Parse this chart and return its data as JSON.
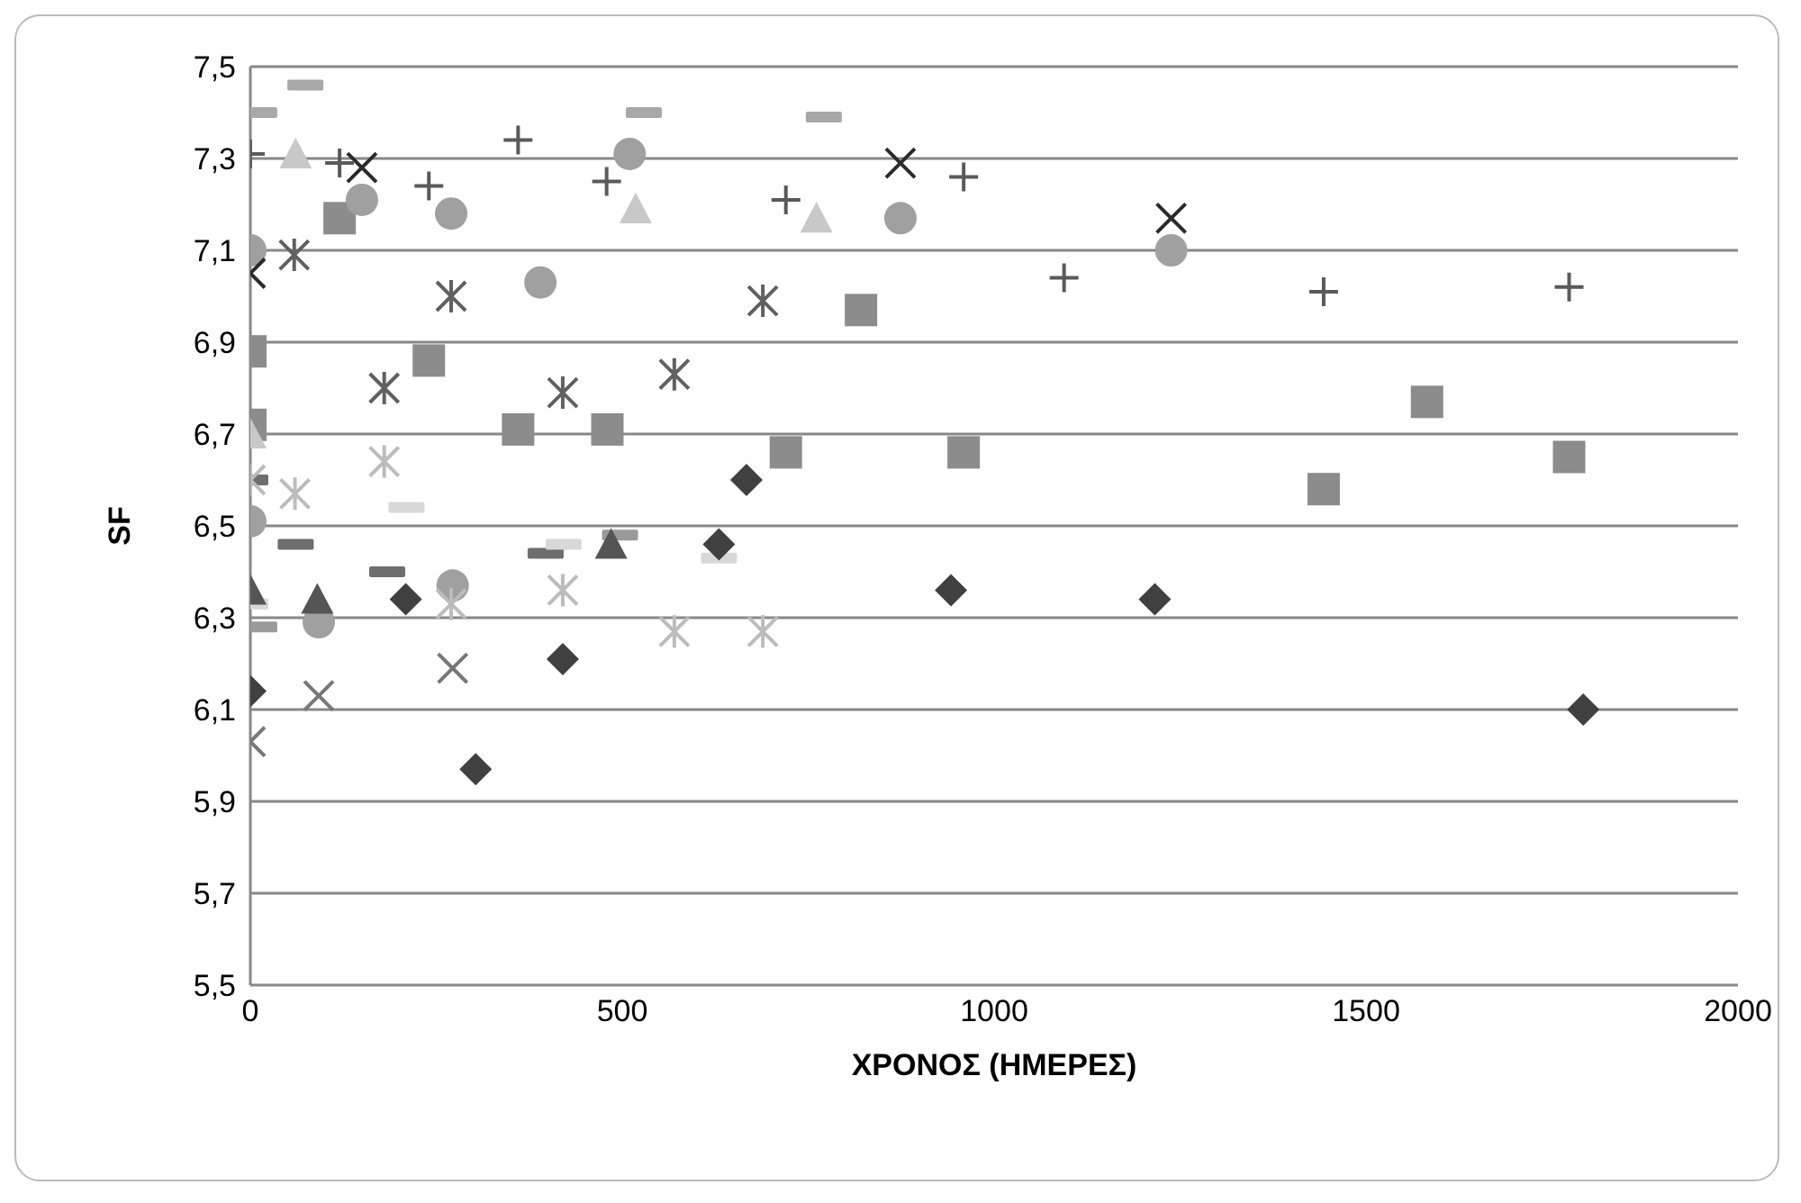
{
  "chart_data": {
    "type": "scatter",
    "xlabel": "ΧΡΟΝΟΣ (ΗΜΕΡΕΣ)",
    "ylabel": "SF",
    "xlim": [
      0,
      2000
    ],
    "xticks": [
      0,
      500,
      1000,
      1500,
      2000
    ],
    "ylim": [
      5.5,
      7.5
    ],
    "yticks": [
      {
        "value": 5.5,
        "label": "5,5"
      },
      {
        "value": 5.7,
        "label": "5,7"
      },
      {
        "value": 5.9,
        "label": "5,9"
      },
      {
        "value": 6.1,
        "label": "6,1"
      },
      {
        "value": 6.3,
        "label": "6,3"
      },
      {
        "value": 6.5,
        "label": "6,5"
      },
      {
        "value": 6.7,
        "label": "6,7"
      },
      {
        "value": 6.9,
        "label": "6,9"
      },
      {
        "value": 7.1,
        "label": "7,1"
      },
      {
        "value": 7.3,
        "label": "7,3"
      },
      {
        "value": 7.5,
        "label": "7,5"
      }
    ],
    "grid": "y",
    "series": [
      {
        "color": "#a8a8a8",
        "x": [
          12,
          74,
          529,
          771
        ],
        "values": [
          7.4,
          7.46,
          7.4,
          7.39
        ]
      },
      {
        "color": "#9a9a9a",
        "x": [
          12,
          497
        ],
        "values": [
          6.28,
          6.48
        ]
      },
      {
        "color": "#6e6e6e",
        "x": [
          0,
          61,
          184,
          397
        ],
        "values": [
          6.6,
          6.46,
          6.4,
          6.44
        ]
      },
      {
        "color": "#d8d8d8",
        "x": [
          0,
          210,
          421,
          630
        ],
        "values": [
          6.33,
          6.54,
          6.46,
          6.43
        ]
      },
      {
        "marker": "square",
        "color": "#8c8c8c",
        "x": [
          0,
          0,
          120,
          240,
          360,
          480,
          720,
          821,
          959,
          1443,
          1582,
          1773
        ],
        "values": [
          6.88,
          6.72,
          7.17,
          6.86,
          6.71,
          6.71,
          6.66,
          6.97,
          6.66,
          6.58,
          6.77,
          6.65
        ]
      },
      {
        "marker": "circle",
        "color": "#a0a0a0",
        "x": [
          0,
          0,
          92,
          150,
          270,
          272,
          390,
          510,
          874,
          1238
        ],
        "values": [
          7.1,
          6.51,
          6.29,
          7.21,
          7.18,
          6.37,
          7.03,
          7.31,
          7.17,
          7.1
        ]
      },
      {
        "marker": "triangle",
        "color": "#c8c8c8",
        "x": [
          0,
          61,
          518,
          761
        ],
        "values": [
          6.7,
          7.31,
          7.19,
          7.17
        ]
      },
      {
        "marker": "triangle",
        "color": "#555555",
        "x": [
          0,
          90,
          485
        ],
        "values": [
          6.36,
          6.34,
          6.46
        ]
      },
      {
        "marker": "diamond",
        "color": "#404040",
        "x": [
          0,
          209,
          303,
          420,
          630,
          667,
          942,
          1216,
          1792
        ],
        "values": [
          6.14,
          6.34,
          5.97,
          6.21,
          6.46,
          6.6,
          6.36,
          6.34,
          6.1
        ]
      },
      {
        "marker": "x",
        "color": "#2a2a2a",
        "x": [
          0,
          150,
          874,
          1238
        ],
        "values": [
          7.05,
          7.28,
          7.29,
          7.17
        ]
      },
      {
        "marker": "x",
        "color": "#777777",
        "x": [
          0,
          92,
          272
        ],
        "values": [
          6.03,
          6.13,
          6.19
        ]
      },
      {
        "marker": "cross",
        "color": "#606060",
        "x": [
          59,
          180,
          270,
          420,
          570,
          689
        ],
        "values": [
          7.09,
          6.8,
          7.0,
          6.79,
          6.83,
          6.99
        ]
      },
      {
        "marker": "cross",
        "color": "#bcbcbc",
        "x": [
          0,
          60,
          180,
          270,
          420,
          570,
          689
        ],
        "values": [
          6.6,
          6.57,
          6.64,
          6.33,
          6.36,
          6.27,
          6.27
        ]
      },
      {
        "marker": "plus",
        "color": "#5a5a5a",
        "x": [
          0,
          120,
          240,
          360,
          479,
          720,
          959,
          1094,
          1443,
          1773
        ],
        "values": [
          7.31,
          7.29,
          7.24,
          7.34,
          7.25,
          7.21,
          7.26,
          7.04,
          7.01,
          7.02
        ]
      }
    ]
  }
}
